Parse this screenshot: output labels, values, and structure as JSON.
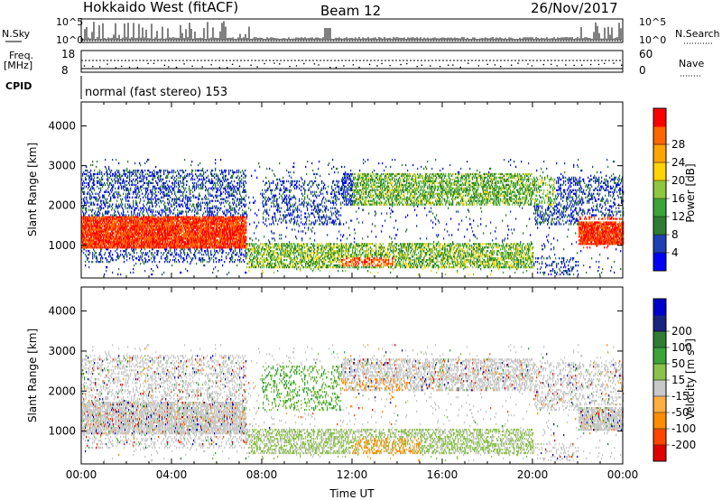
{
  "header": {
    "station": "Hokkaido West (fitACF)",
    "beam": "Beam 12",
    "date": "26/Nov/2017"
  },
  "panels": {
    "nsky_label": "N.Sky",
    "nsky_ticks": [
      "10^5",
      "10^0"
    ],
    "nsearch_ticks": [
      "10^5",
      "10^0"
    ],
    "nsearch_label": "N.Search",
    "freq_label": "Freq.",
    "freq_unit": "[MHz]",
    "freq_ticks": [
      "18",
      "8"
    ],
    "nave_ticks": [
      "60",
      "0"
    ],
    "nave_label": "Nave",
    "cpid_label": "CPID",
    "mode": "normal (fast stereo) 153"
  },
  "colors": {
    "power": [
      "#0000ff",
      "#1f3fb4",
      "#2e7d32",
      "#3aa53a",
      "#8ec63f",
      "#ffd400",
      "#ffa500",
      "#ff6600",
      "#ff0000"
    ],
    "velocity": [
      "#e00000",
      "#ff4500",
      "#ff8c00",
      "#ffae42",
      "#c8c8c8",
      "#8bc34a",
      "#3aa53a",
      "#2e7d32",
      "#1a237e",
      "#0000cd"
    ]
  },
  "chart_data": [
    {
      "type": "heatmap",
      "title": "Power",
      "ylabel": "Slant Range [km]",
      "colorbar_label": "Power [dB]",
      "colorbar_ticks": [
        "4",
        "8",
        "12",
        "16",
        "20",
        "24",
        "28"
      ],
      "yticks": [
        "1000",
        "2000",
        "3000",
        "4000"
      ],
      "ylim": [
        180,
        4600
      ],
      "xlim": [
        0,
        24
      ],
      "regions": [
        {
          "t": [
            0,
            7.3
          ],
          "r": [
            900,
            1700
          ],
          "level": "strong"
        },
        {
          "t": [
            0,
            7.3
          ],
          "r": [
            1700,
            2900
          ],
          "level": "weak"
        },
        {
          "t": [
            7.3,
            20
          ],
          "r": [
            450,
            1050
          ],
          "level": "medium"
        },
        {
          "t": [
            11.5,
            13.5
          ],
          "r": [
            450,
            700
          ],
          "level": "strong"
        },
        {
          "t": [
            12,
            21
          ],
          "r": [
            2100,
            2800
          ],
          "level": "medium"
        },
        {
          "t": [
            22,
            24
          ],
          "r": [
            1000,
            1600
          ],
          "level": "strong"
        }
      ]
    },
    {
      "type": "heatmap",
      "title": "Velocity",
      "ylabel": "Slant Range [km]",
      "xlabel": "Time UT",
      "colorbar_label": "Velocity [m s^-1]",
      "colorbar_ticks": [
        "-200",
        "-100",
        "-50",
        "-15",
        "15",
        "50",
        "100",
        "200"
      ],
      "yticks": [
        "1000",
        "2000",
        "3000",
        "4000"
      ],
      "xticks": [
        "00:00",
        "04:00",
        "08:00",
        "12:00",
        "16:00",
        "20:00",
        "00:00"
      ],
      "ylim": [
        180,
        4600
      ],
      "xlim": [
        0,
        24
      ]
    }
  ]
}
